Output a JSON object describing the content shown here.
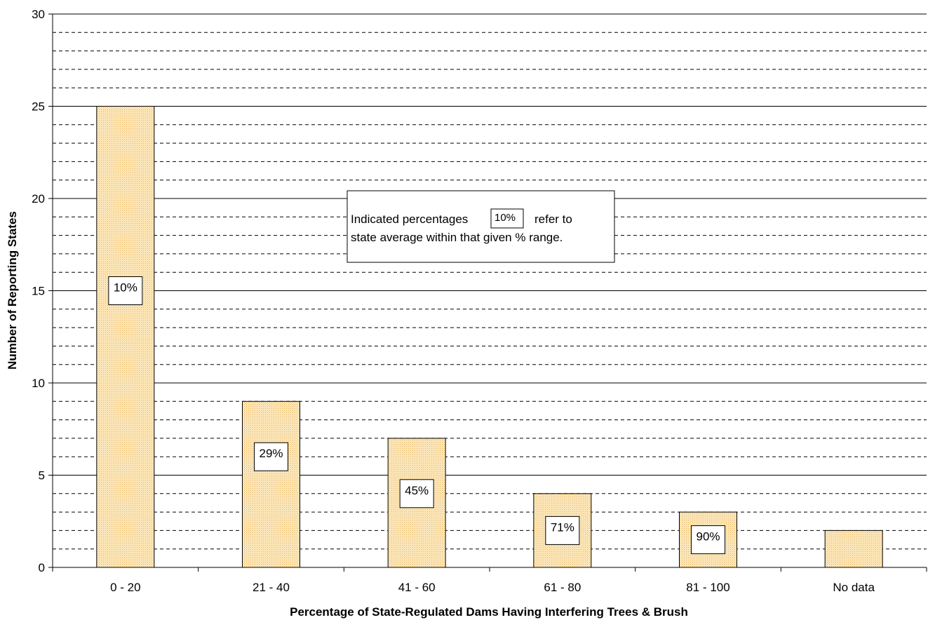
{
  "chart_data": {
    "type": "bar",
    "categories": [
      "0 - 20",
      "21 - 40",
      "41 - 60",
      "61 - 80",
      "81 - 100",
      "No data"
    ],
    "values": [
      25,
      9,
      7,
      4,
      3,
      2
    ],
    "data_labels": [
      "10%",
      "29%",
      "45%",
      "71%",
      "90%",
      ""
    ],
    "xlabel": "Percentage of State-Regulated Dams Having Interfering Trees & Brush",
    "ylabel": "Number of Reporting States",
    "ylim": [
      0,
      30
    ],
    "yticks": [
      0,
      5,
      10,
      15,
      20,
      25,
      30
    ],
    "grid": "major solid every 5, minor dashed every 1",
    "bar_color": "#fde9c0",
    "bar_pattern_color": "#f0c060",
    "annotation": {
      "line1_before": "Indicated percentages",
      "sample": "10%",
      "line1_after": "refer to",
      "line2": "state average within that given % range."
    }
  }
}
